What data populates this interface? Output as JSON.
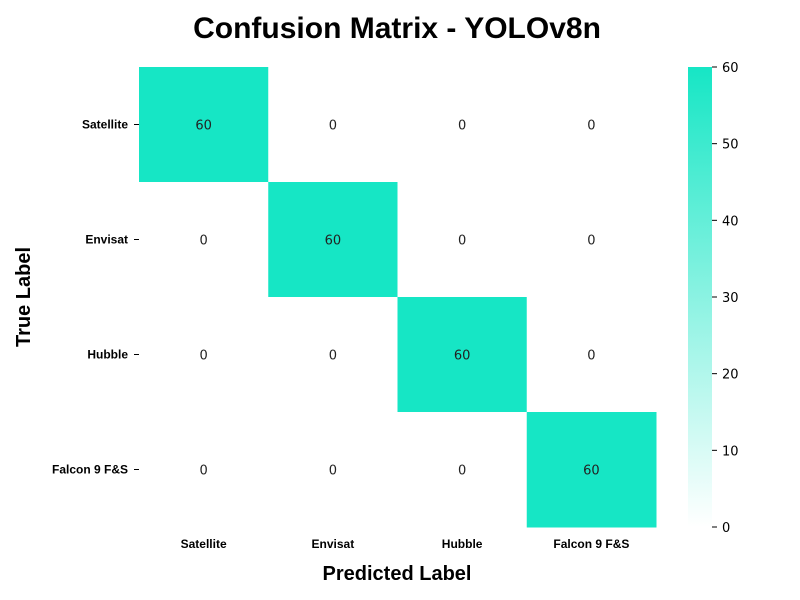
{
  "chart_data": {
    "type": "heatmap",
    "title": "Confusion Matrix - YOLOv8n",
    "xlabel": "Predicted Label",
    "ylabel": "True Label",
    "x_categories": [
      "Satellite",
      "Envisat",
      "Hubble",
      "Falcon 9 F&S"
    ],
    "y_categories": [
      "Satellite",
      "Envisat",
      "Hubble",
      "Falcon 9 F&S"
    ],
    "values": [
      [
        60,
        0,
        0,
        0
      ],
      [
        0,
        60,
        0,
        0
      ],
      [
        0,
        0,
        60,
        0
      ],
      [
        0,
        0,
        0,
        60
      ]
    ],
    "colorbar": {
      "range": [
        0,
        60
      ],
      "ticks": [
        0,
        10,
        20,
        30,
        40,
        50,
        60
      ],
      "color_min": "#ffffff",
      "color_max": "#16e6c5"
    },
    "grid": false,
    "legend": "colorbar-right"
  }
}
